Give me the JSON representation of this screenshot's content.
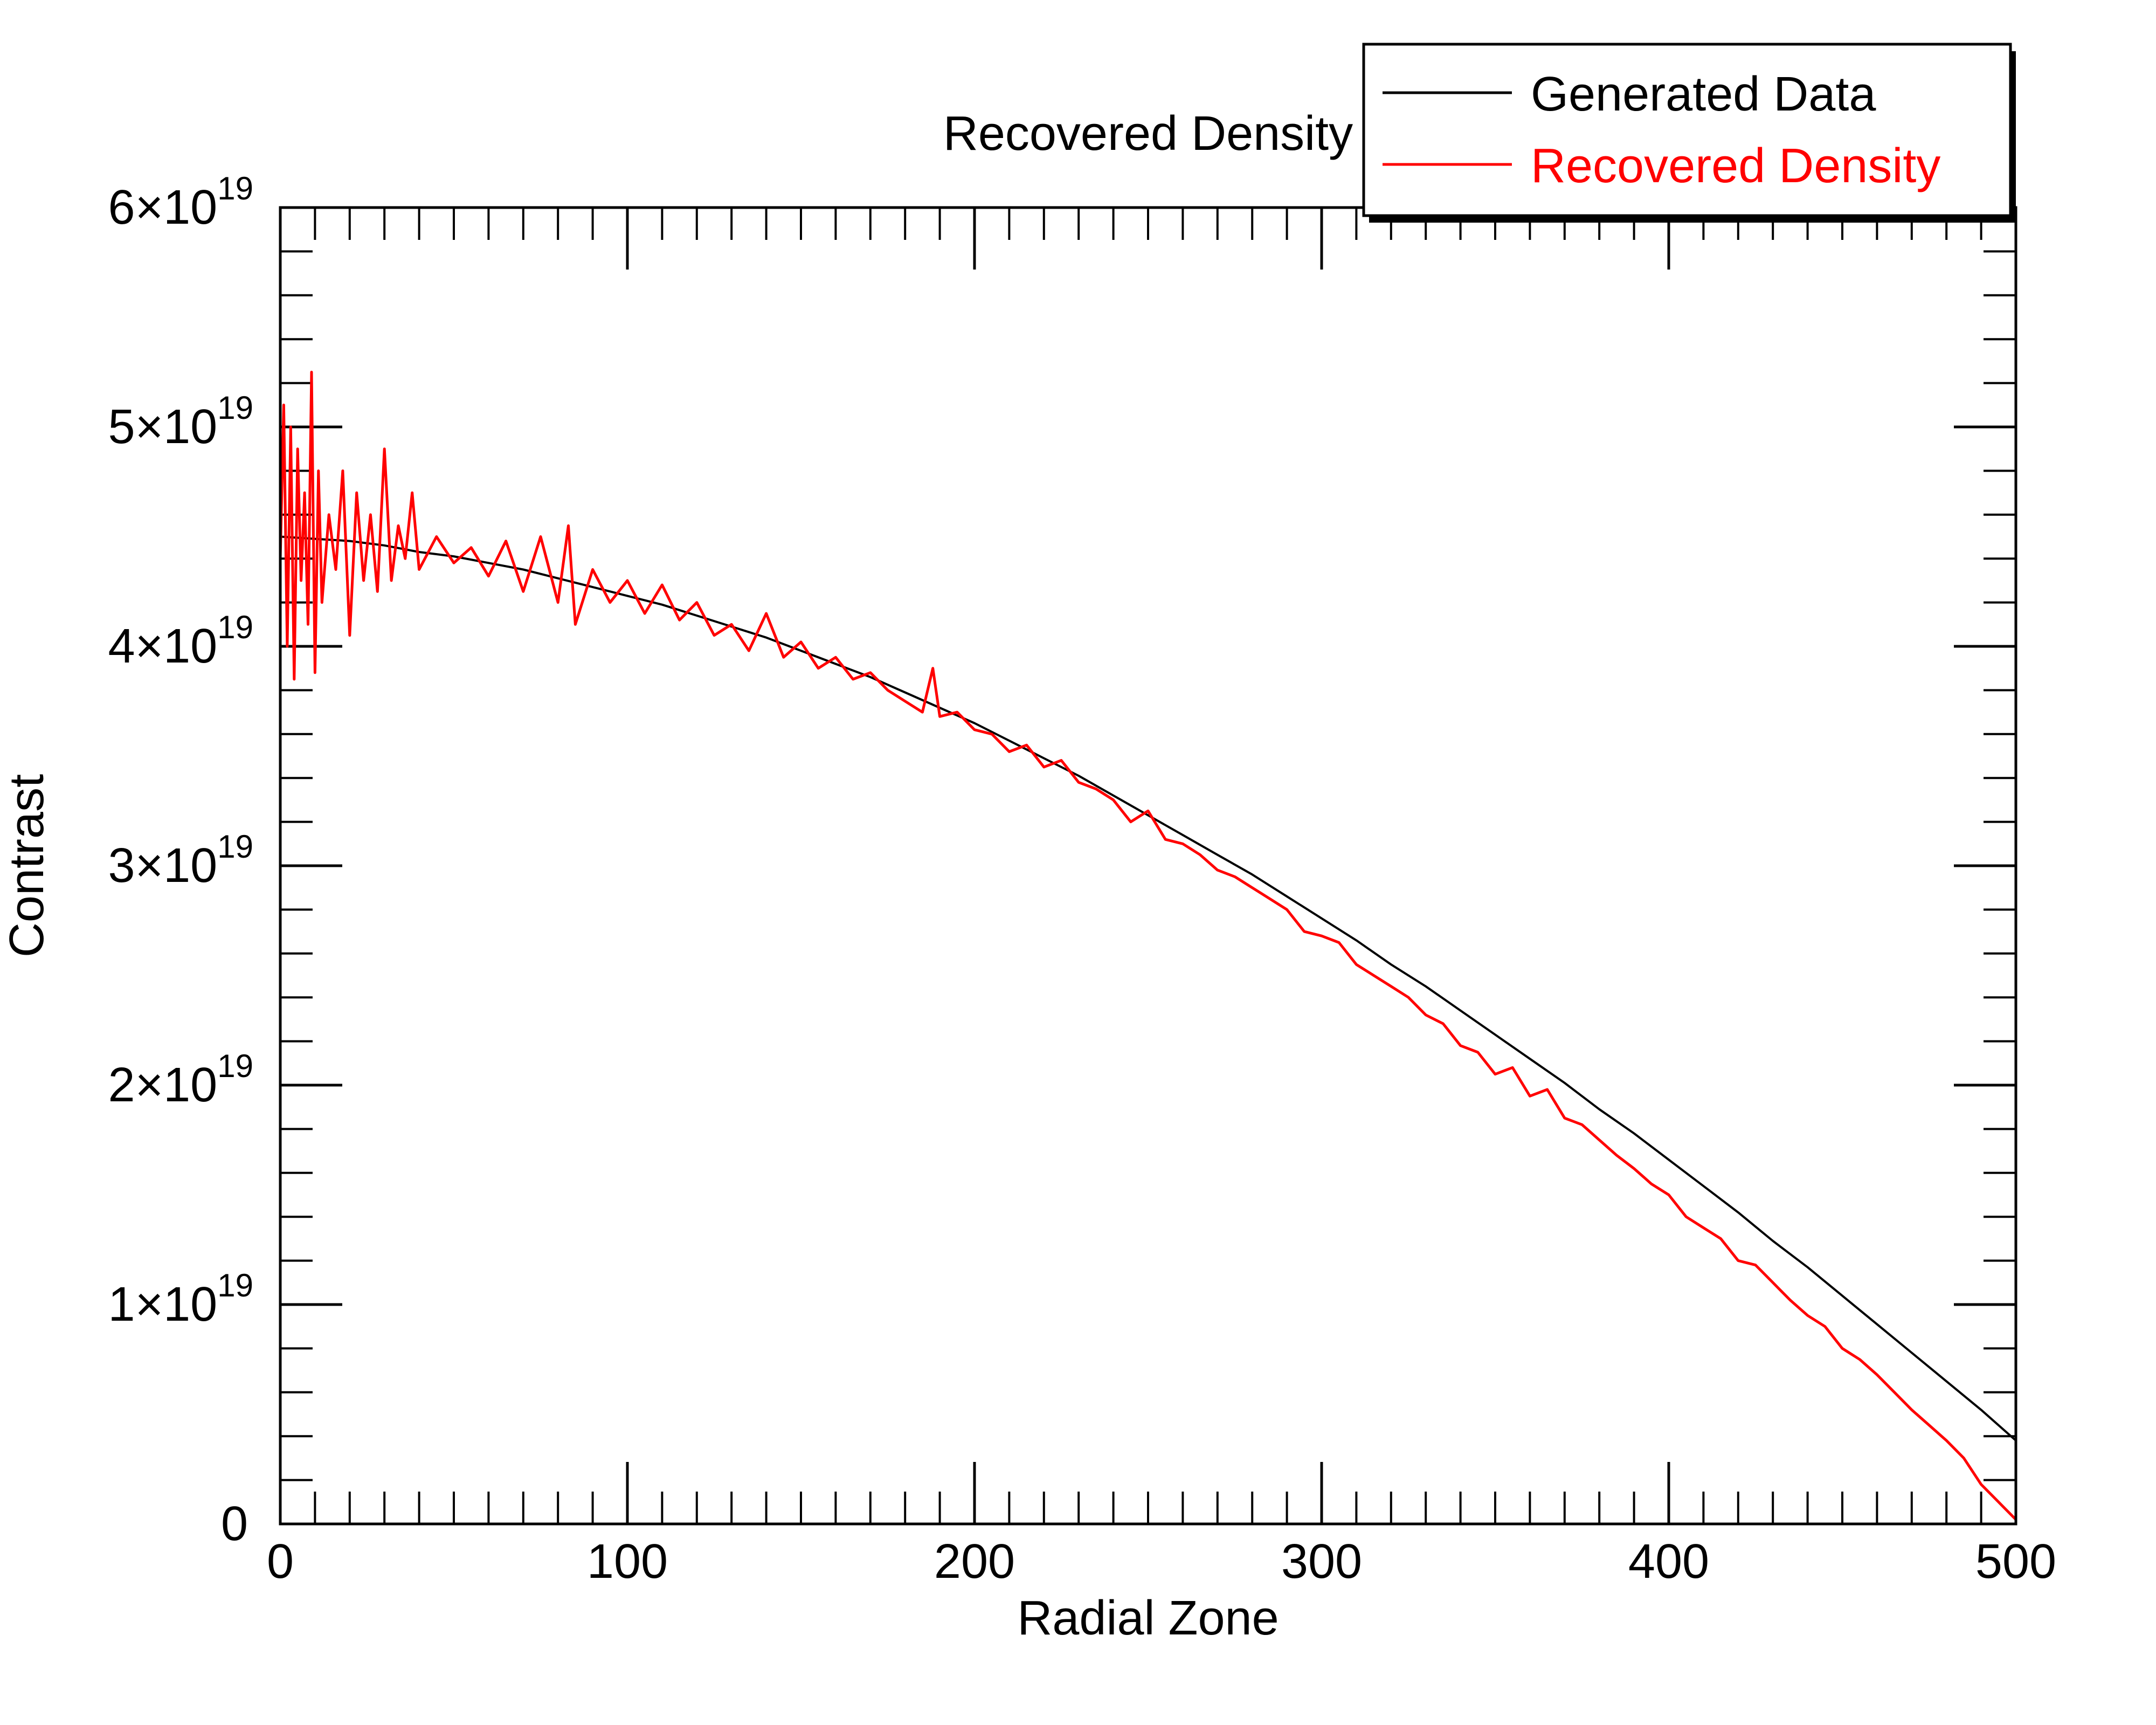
{
  "chart_data": {
    "type": "line",
    "title": "Recovered Density",
    "xlabel": "Radial Zone",
    "ylabel": "Contrast",
    "xlim": [
      0,
      500
    ],
    "ylim": [
      0,
      6e+19
    ],
    "x_ticks": [
      0,
      100,
      200,
      300,
      400,
      500
    ],
    "x_tick_labels": [
      "0",
      "100",
      "200",
      "300",
      "400",
      "500"
    ],
    "y_ticks": [
      0,
      1e+19,
      2e+19,
      3e+19,
      4e+19,
      5e+19,
      6e+19
    ],
    "y_tick_labels": [
      {
        "mantissa": "0",
        "exponent": ""
      },
      {
        "mantissa": "1×10",
        "exponent": "19"
      },
      {
        "mantissa": "2×10",
        "exponent": "19"
      },
      {
        "mantissa": "3×10",
        "exponent": "19"
      },
      {
        "mantissa": "4×10",
        "exponent": "19"
      },
      {
        "mantissa": "5×10",
        "exponent": "19"
      },
      {
        "mantissa": "6×10",
        "exponent": "19"
      }
    ],
    "grid": false,
    "legend_position": "top-right",
    "series": [
      {
        "name": "Generated Data",
        "color": "#000000",
        "x": [
          0,
          10,
          20,
          30,
          40,
          50,
          60,
          70,
          80,
          90,
          100,
          110,
          120,
          130,
          140,
          150,
          160,
          170,
          180,
          190,
          200,
          210,
          220,
          230,
          240,
          250,
          260,
          270,
          280,
          290,
          300,
          310,
          320,
          330,
          340,
          350,
          360,
          370,
          380,
          390,
          400,
          410,
          420,
          430,
          440,
          450,
          460,
          470,
          480,
          490,
          500
        ],
        "y": [
          4.5e+19,
          4.49e+19,
          4.48e+19,
          4.46e+19,
          4.43e+19,
          4.41e+19,
          4.38e+19,
          4.35e+19,
          4.31e+19,
          4.27e+19,
          4.23e+19,
          4.19e+19,
          4.14e+19,
          4.09e+19,
          4.04e+19,
          3.98e+19,
          3.92e+19,
          3.86e+19,
          3.79e+19,
          3.72e+19,
          3.65e+19,
          3.57e+19,
          3.49e+19,
          3.41e+19,
          3.32e+19,
          3.23e+19,
          3.14e+19,
          3.05e+19,
          2.96e+19,
          2.86e+19,
          2.76e+19,
          2.66e+19,
          2.55e+19,
          2.45e+19,
          2.34e+19,
          2.23e+19,
          2.12e+19,
          2.01e+19,
          1.89e+19,
          1.78e+19,
          1.66e+19,
          1.54e+19,
          1.42e+19,
          1.29e+19,
          1.17e+19,
          1.04e+19,
          9.1e+18,
          7.8e+18,
          6.5e+18,
          5.2e+18,
          3.8e+18
        ]
      },
      {
        "name": "Recovered Density",
        "color": "#ff0000",
        "x": [
          0,
          1,
          2,
          3,
          4,
          5,
          6,
          7,
          8,
          9,
          10,
          11,
          12,
          14,
          16,
          18,
          20,
          22,
          24,
          26,
          28,
          30,
          32,
          34,
          36,
          38,
          40,
          45,
          50,
          55,
          60,
          65,
          70,
          75,
          80,
          83,
          85,
          90,
          95,
          100,
          105,
          110,
          115,
          120,
          125,
          130,
          135,
          140,
          145,
          150,
          155,
          160,
          165,
          170,
          175,
          180,
          185,
          188,
          190,
          195,
          200,
          205,
          210,
          215,
          220,
          225,
          230,
          235,
          240,
          245,
          250,
          255,
          260,
          265,
          270,
          275,
          280,
          285,
          290,
          295,
          300,
          305,
          310,
          315,
          320,
          325,
          330,
          335,
          340,
          345,
          350,
          355,
          360,
          365,
          370,
          375,
          380,
          385,
          390,
          395,
          400,
          405,
          410,
          415,
          420,
          425,
          430,
          435,
          440,
          445,
          450,
          455,
          460,
          465,
          470,
          475,
          480,
          485,
          490,
          495,
          500
        ],
        "y": [
          4.4e+19,
          5.1e+19,
          4e+19,
          5e+19,
          3.85e+19,
          4.9e+19,
          4.3e+19,
          4.7e+19,
          4.1e+19,
          5.25e+19,
          3.88e+19,
          4.8e+19,
          4.2e+19,
          4.6e+19,
          4.35e+19,
          4.8e+19,
          4.05e+19,
          4.7e+19,
          4.3e+19,
          4.6e+19,
          4.25e+19,
          4.9e+19,
          4.3e+19,
          4.55e+19,
          4.4e+19,
          4.7e+19,
          4.35e+19,
          4.5e+19,
          4.38e+19,
          4.45e+19,
          4.32e+19,
          4.48e+19,
          4.25e+19,
          4.5e+19,
          4.2e+19,
          4.55e+19,
          4.1e+19,
          4.35e+19,
          4.2e+19,
          4.3e+19,
          4.15e+19,
          4.28e+19,
          4.12e+19,
          4.2e+19,
          4.05e+19,
          4.1e+19,
          3.98e+19,
          4.15e+19,
          3.95e+19,
          4.02e+19,
          3.9e+19,
          3.95e+19,
          3.85e+19,
          3.88e+19,
          3.8e+19,
          3.75e+19,
          3.7e+19,
          3.9e+19,
          3.68e+19,
          3.7e+19,
          3.62e+19,
          3.6e+19,
          3.52e+19,
          3.55e+19,
          3.45e+19,
          3.48e+19,
          3.38e+19,
          3.35e+19,
          3.3e+19,
          3.2e+19,
          3.25e+19,
          3.12e+19,
          3.1e+19,
          3.05e+19,
          2.98e+19,
          2.95e+19,
          2.9e+19,
          2.85e+19,
          2.8e+19,
          2.7e+19,
          2.68e+19,
          2.65e+19,
          2.55e+19,
          2.5e+19,
          2.45e+19,
          2.4e+19,
          2.32e+19,
          2.28e+19,
          2.18e+19,
          2.15e+19,
          2.05e+19,
          2.08e+19,
          1.95e+19,
          1.98e+19,
          1.85e+19,
          1.82e+19,
          1.75e+19,
          1.68e+19,
          1.62e+19,
          1.55e+19,
          1.5e+19,
          1.4e+19,
          1.35e+19,
          1.3e+19,
          1.2e+19,
          1.18e+19,
          1.1e+19,
          1.02e+19,
          9.5e+18,
          9e+18,
          8e+18,
          7.5e+18,
          6.8e+18,
          6e+18,
          5.2e+18,
          4.5e+18,
          3.8e+18,
          3e+18,
          1.8e+18,
          1e+18,
          2e+17
        ]
      }
    ]
  }
}
